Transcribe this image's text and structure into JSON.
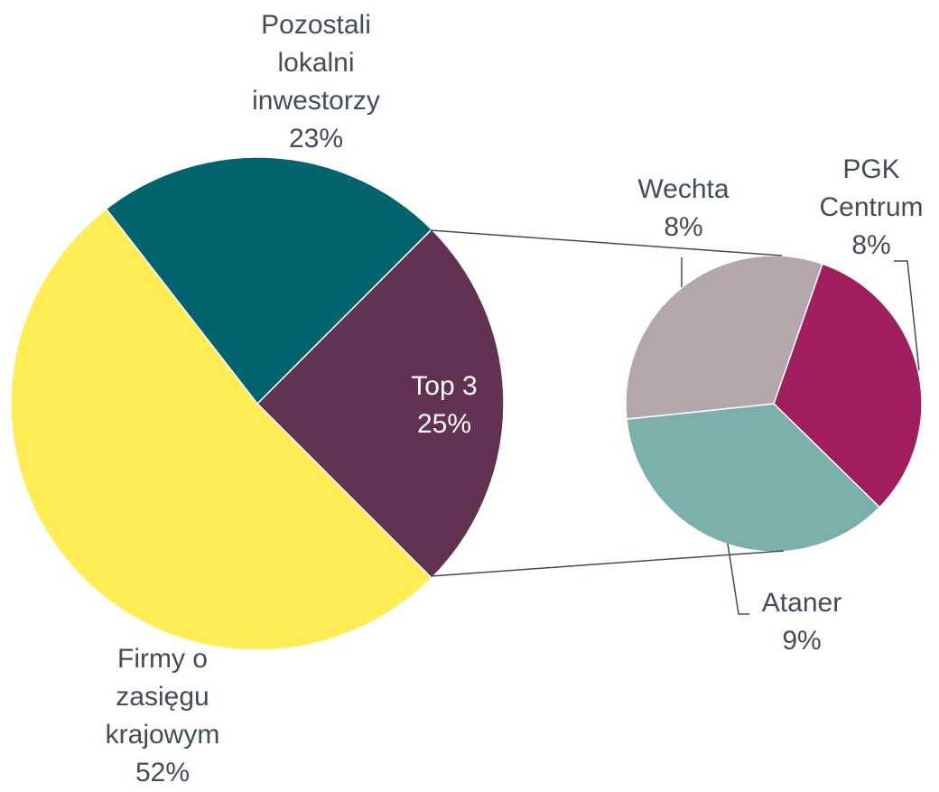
{
  "chart_data": {
    "type": "pie-of-pie",
    "categories": [
      "Top 3",
      "Firmy o zasięgu krajowym",
      "Pozostali lokalni inwestorzy"
    ],
    "values": [
      25,
      52,
      23
    ],
    "value_labels": [
      "25%",
      "52%",
      "23%"
    ],
    "colors": [
      "#633152",
      "#FFED55",
      "#00636E"
    ],
    "secondary": {
      "categories": [
        "PGK Centrum",
        "Ataner",
        "Wechta"
      ],
      "values": [
        8,
        9,
        8
      ],
      "value_labels": [
        "8%",
        "9%",
        "8%"
      ],
      "colors": [
        "#A01D5E",
        "#7AB0A9",
        "#B3A6AC"
      ]
    }
  }
}
